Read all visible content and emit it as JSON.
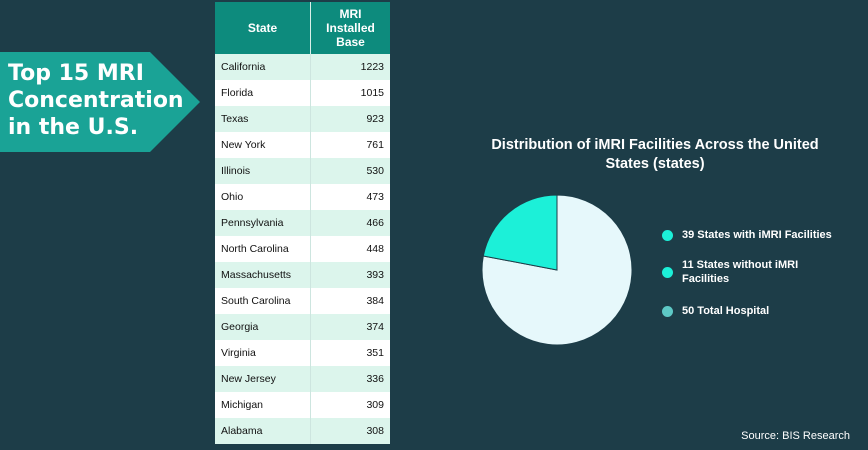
{
  "banner": {
    "title": "Top 15 MRI Concentration in the U.S."
  },
  "table": {
    "headers": [
      "State",
      "MRI Installed Base"
    ],
    "rows": [
      {
        "state": "California",
        "value": "1223"
      },
      {
        "state": "Florida",
        "value": "1015"
      },
      {
        "state": "Texas",
        "value": "923"
      },
      {
        "state": "New York",
        "value": "761"
      },
      {
        "state": "Illinois",
        "value": "530"
      },
      {
        "state": "Ohio",
        "value": "473"
      },
      {
        "state": "Pennsylvania",
        "value": "466"
      },
      {
        "state": "North Carolina",
        "value": "448"
      },
      {
        "state": "Massachusetts",
        "value": "393"
      },
      {
        "state": "South Carolina",
        "value": "384"
      },
      {
        "state": "Georgia",
        "value": "374"
      },
      {
        "state": "Virginia",
        "value": "351"
      },
      {
        "state": "New Jersey",
        "value": "336"
      },
      {
        "state": "Michigan",
        "value": "309"
      },
      {
        "state": "Alabama",
        "value": "308"
      }
    ]
  },
  "chart_data": [
    {
      "type": "table",
      "columns": [
        "State",
        "MRI Installed Base"
      ],
      "categories": [
        "California",
        "Florida",
        "Texas",
        "New York",
        "Illinois",
        "Ohio",
        "Pennsylvania",
        "North Carolina",
        "Massachusetts",
        "South Carolina",
        "Georgia",
        "Virginia",
        "New Jersey",
        "Michigan",
        "Alabama"
      ],
      "values": [
        1223,
        1015,
        923,
        761,
        530,
        473,
        466,
        448,
        393,
        384,
        374,
        351,
        336,
        309,
        308
      ]
    },
    {
      "type": "pie",
      "title": "Distribution of iMRI Facilities Across the United States (states)",
      "slices": [
        {
          "label": "39 States with iMRI Facilities",
          "value": 39,
          "color": "#e6f8fb"
        },
        {
          "label": "11 States without iMRI Facilities",
          "value": 11,
          "color": "#1cf0d8"
        }
      ],
      "legend": [
        {
          "label": "39 States with iMRI Facilities",
          "color": "#1cf0d8"
        },
        {
          "label": "11 States without iMRI Facilities",
          "color": "#1cf0d8"
        },
        {
          "label": "50 Total Hospital",
          "color": "#5ec9c6"
        }
      ],
      "legend_position": "right"
    }
  ],
  "source": "Source: BIS Research",
  "colors": {
    "background": "#1d3d48",
    "banner": "#1aa396",
    "header": "#0d8b7d",
    "row_alt": "#dcf5ec"
  }
}
